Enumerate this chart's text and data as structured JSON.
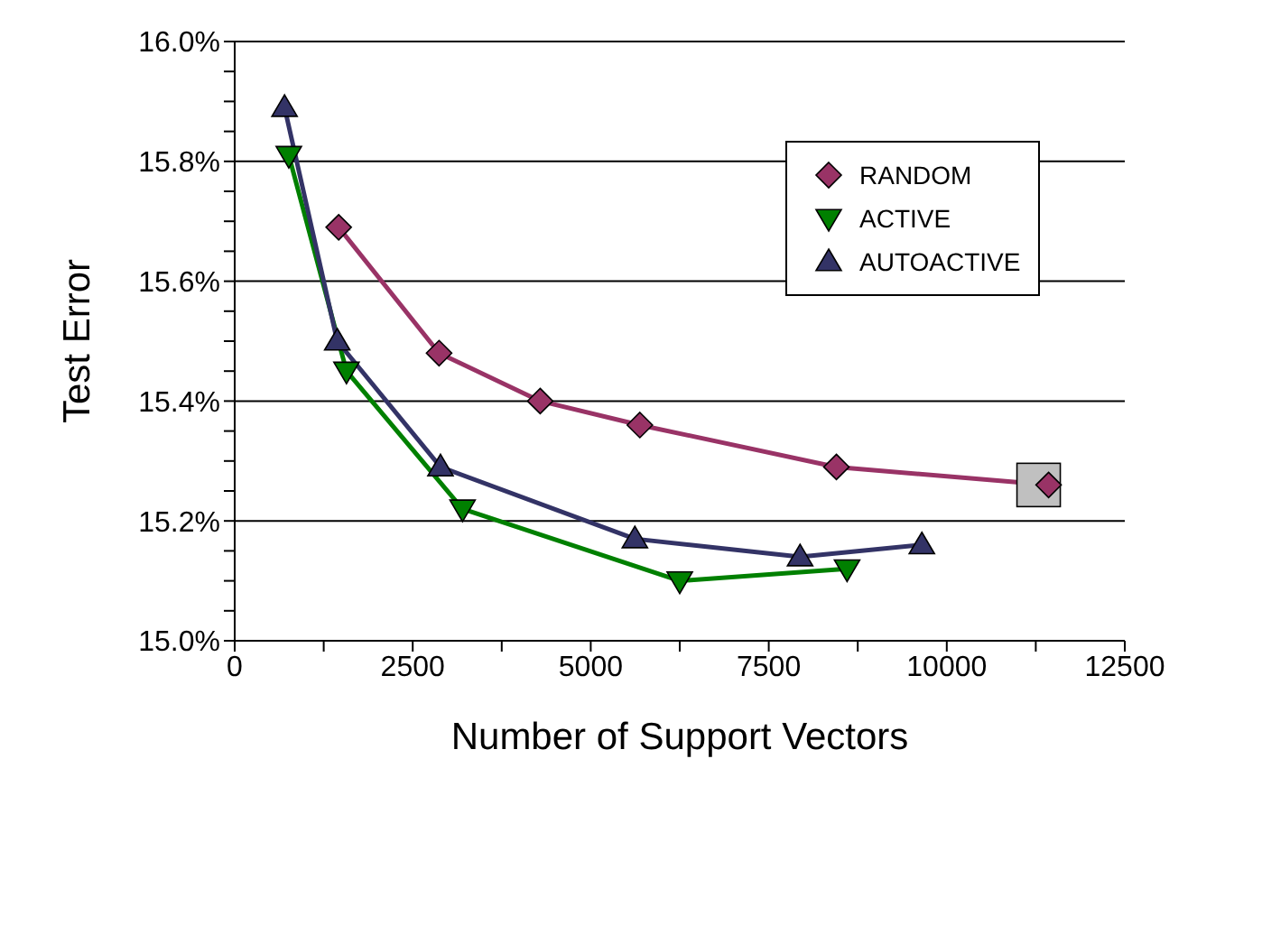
{
  "chart_data": {
    "type": "line",
    "xlabel": "Number of Support Vectors",
    "ylabel": "Test Error",
    "xlim": [
      0,
      12500
    ],
    "xticks": [
      0,
      {
        "value": 1250,
        "label": null
      },
      2500,
      {
        "value": 3750,
        "label": null
      },
      5000,
      {
        "value": 6250,
        "label": null
      },
      7500,
      {
        "value": 8750,
        "label": null
      },
      10000,
      {
        "value": 11250,
        "label": null
      },
      12500
    ],
    "ylim": [
      15.0,
      16.0
    ],
    "yticks": [
      {
        "value": 15.0,
        "label": "15.0%"
      },
      {
        "value": 15.05,
        "label": null
      },
      {
        "value": 15.1,
        "label": null
      },
      {
        "value": 15.15,
        "label": null
      },
      {
        "value": 15.2,
        "label": "15.2%"
      },
      {
        "value": 15.25,
        "label": null
      },
      {
        "value": 15.3,
        "label": null
      },
      {
        "value": 15.35,
        "label": null
      },
      {
        "value": 15.4,
        "label": "15.4%"
      },
      {
        "value": 15.45,
        "label": null
      },
      {
        "value": 15.5,
        "label": null
      },
      {
        "value": 15.55,
        "label": null
      },
      {
        "value": 15.6,
        "label": "15.6%"
      },
      {
        "value": 15.65,
        "label": null
      },
      {
        "value": 15.7,
        "label": null
      },
      {
        "value": 15.75,
        "label": null
      },
      {
        "value": 15.8,
        "label": "15.8%"
      },
      {
        "value": 15.85,
        "label": null
      },
      {
        "value": 15.9,
        "label": null
      },
      {
        "value": 15.95,
        "label": null
      },
      {
        "value": 16.0,
        "label": "16.0%"
      }
    ],
    "grid": "y",
    "legend": "top right",
    "line_style": "solid",
    "series": [
      {
        "name": "RANDOM",
        "color": "#993366",
        "marker": "diamond",
        "x": [
          1460,
          2870,
          4290,
          5690,
          8450,
          11430
        ],
        "values": [
          15.69,
          15.48,
          15.4,
          15.36,
          15.29,
          15.26
        ]
      },
      {
        "name": "ACTIVE",
        "color": "#008000",
        "marker": "triangle-down",
        "x": [
          760,
          1570,
          3200,
          6250,
          8600
        ],
        "values": [
          15.81,
          15.45,
          15.22,
          15.1,
          15.12
        ]
      },
      {
        "name": "AUTOACTIVE",
        "color": "#333366",
        "marker": "triangle",
        "x": [
          700,
          1440,
          2890,
          5620,
          7940,
          9650
        ],
        "values": [
          15.89,
          15.5,
          15.29,
          15.17,
          15.14,
          15.16
        ]
      },
      {
        "type": "scatter",
        "color": "#c0c0c0",
        "marker": "square",
        "x": [
          11290
        ],
        "values": [
          15.26
        ]
      }
    ]
  }
}
